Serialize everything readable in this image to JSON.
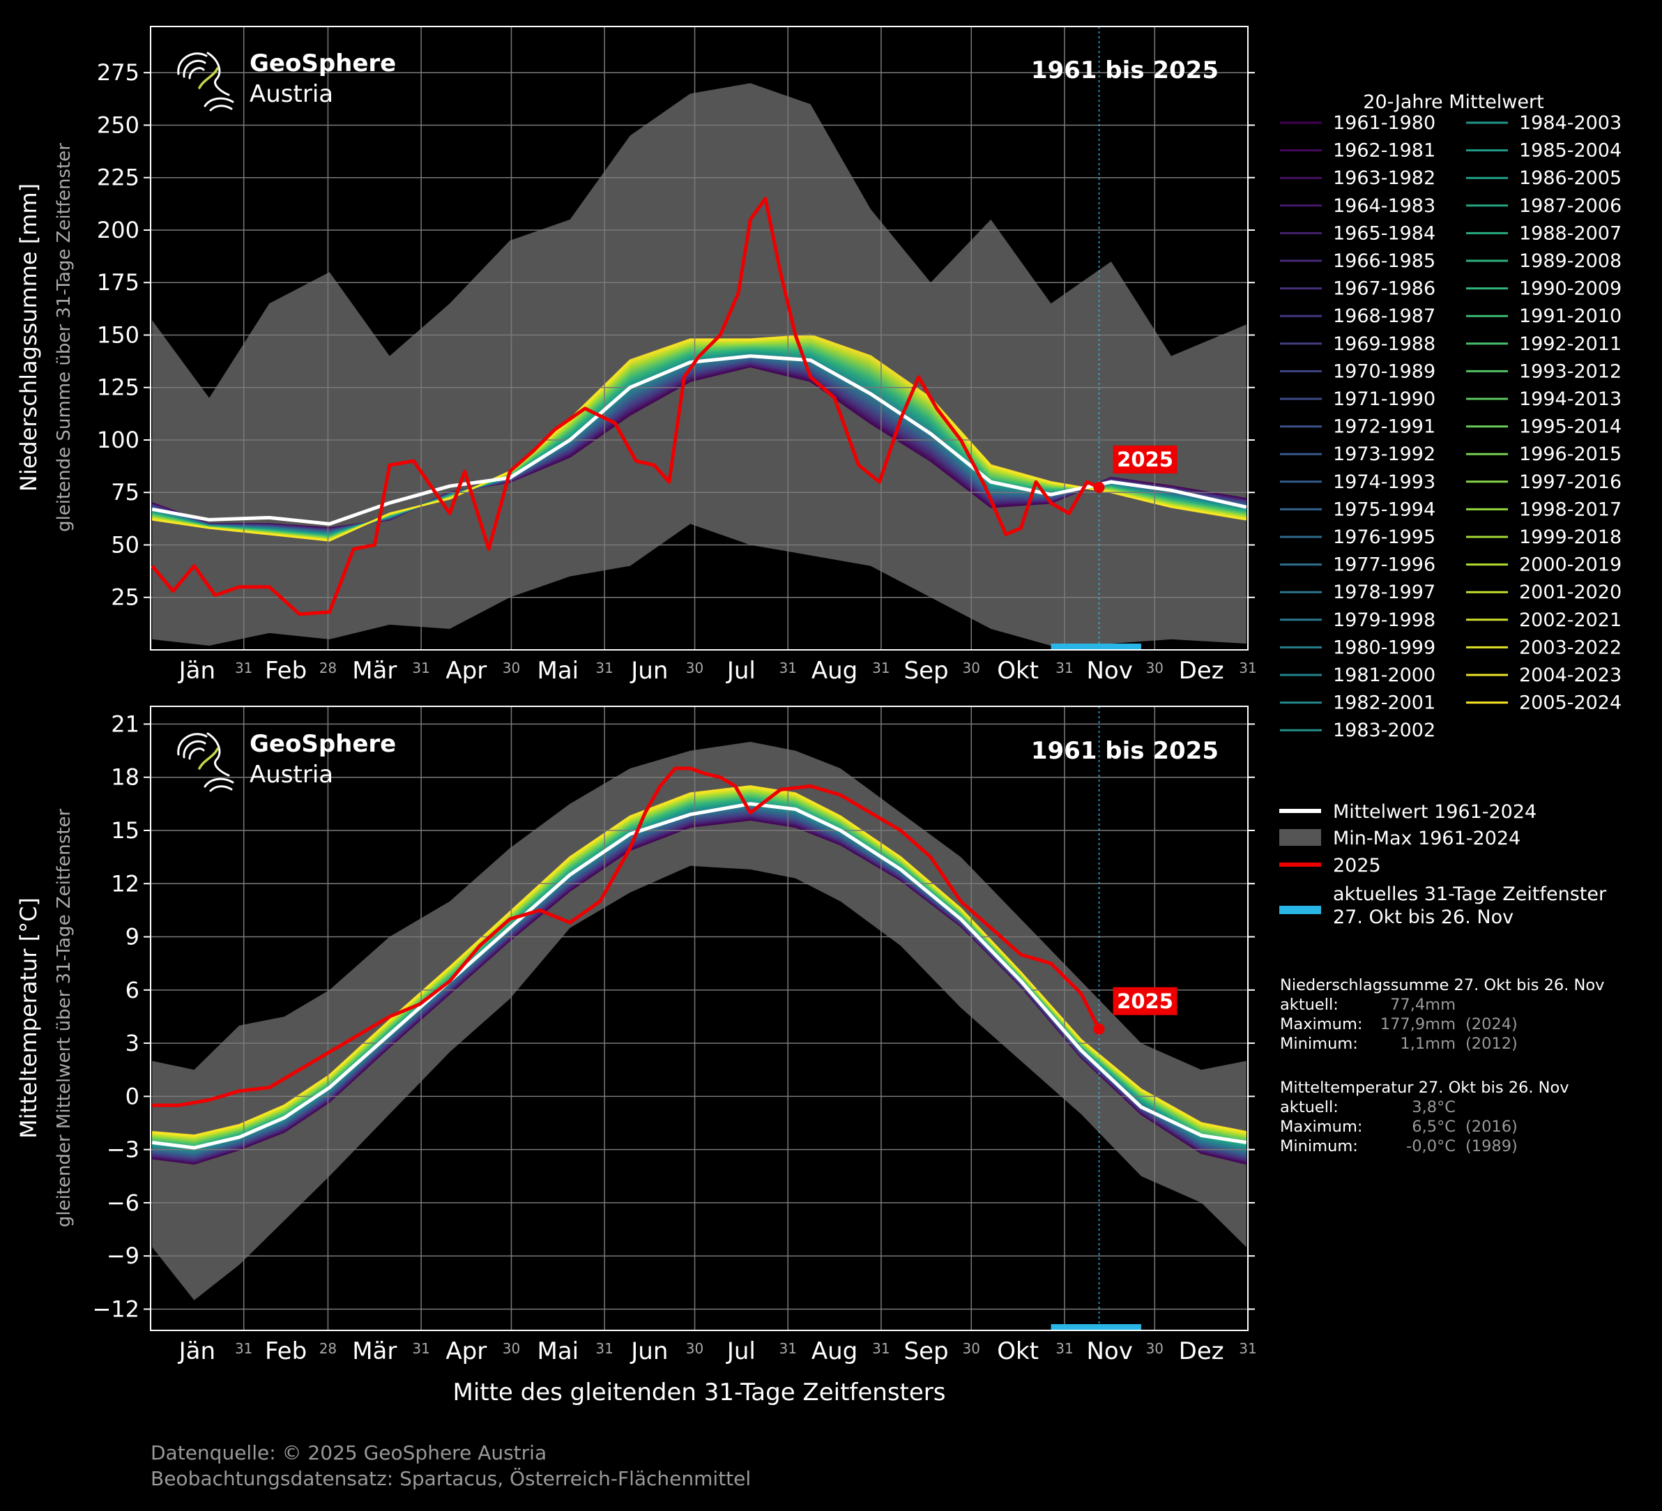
{
  "source": {
    "line1": "Datenquelle: © 2025 GeoSphere Austria",
    "line2": "Beobachtungsdatensatz: Spartacus, Österreich-Flächenmittel"
  },
  "logo": {
    "line1": "GeoSphere",
    "line2": "Austria"
  },
  "x_axis": {
    "label": "Mitte des gleitenden 31-Tage Zeitfensters",
    "months": [
      "Jän",
      "Feb",
      "Mär",
      "Apr",
      "Mai",
      "Jun",
      "Jul",
      "Aug",
      "Sep",
      "Okt",
      "Nov",
      "Dez"
    ],
    "month_ends": [
      "31",
      "28",
      "31",
      "30",
      "31",
      "30",
      "31",
      "31",
      "30",
      "31",
      "30",
      "31"
    ]
  },
  "legend": {
    "title": "20-Jahre Mittelwert",
    "periods": [
      "1961-1980",
      "1962-1981",
      "1963-1982",
      "1964-1983",
      "1965-1984",
      "1966-1985",
      "1967-1986",
      "1968-1987",
      "1969-1988",
      "1970-1989",
      "1971-1990",
      "1972-1991",
      "1973-1992",
      "1974-1993",
      "1975-1994",
      "1976-1995",
      "1977-1996",
      "1978-1997",
      "1979-1998",
      "1980-1999",
      "1981-2000",
      "1982-2001",
      "1983-2002",
      "1984-2003",
      "1985-2004",
      "1986-2005",
      "1987-2006",
      "1988-2007",
      "1989-2008",
      "1990-2009",
      "1991-2010",
      "1992-2011",
      "1993-2012",
      "1994-2013",
      "1995-2014",
      "1996-2015",
      "1997-2016",
      "1998-2017",
      "1999-2018",
      "2000-2019",
      "2001-2020",
      "2002-2021",
      "2003-2022",
      "2004-2023",
      "2005-2024"
    ],
    "mean": "Mittelwert 1961-2024",
    "minmax": "Min-Max 1961-2024",
    "current_year": "2025",
    "window_line1": "aktuelles 31-Tage Zeitfenster",
    "window_line2": "27. Okt bis 26. Nov"
  },
  "stats": {
    "precip": {
      "title": "Niederschlagssumme 27. Okt bis 26. Nov",
      "aktuell_label": "aktuell:",
      "aktuell": "77,4mm",
      "max_label": "Maximum:",
      "max": "177,9mm",
      "max_year": "(2024)",
      "min_label": "Minimum:",
      "min": "1,1mm",
      "min_year": "(2012)"
    },
    "temp": {
      "title": "Mitteltemperatur 27. Okt bis 26. Nov",
      "aktuell_label": "aktuell:",
      "aktuell": "3,8°C",
      "max_label": "Maximum:",
      "max": "6,5°C",
      "max_year": "(2016)",
      "min_label": "Minimum:",
      "min": "-0,0°C",
      "min_year": "(1989)"
    }
  },
  "colors": {
    "background": "#000000",
    "minmax_fill": "#555555",
    "mean": "#ffffff",
    "current": "#ee0000",
    "window": "#29b6e6",
    "grid": "#7a7a7a",
    "period_colormap": "viridis"
  },
  "chart_data": [
    {
      "type": "line",
      "title": "1961 bis 2025",
      "ylabel": "Niederschlagssumme [mm]",
      "ylabel2": "gleitende Summe über 31-Tage Zeitfenster",
      "ylim": [
        0,
        297
      ],
      "yticks": [
        25,
        50,
        75,
        100,
        125,
        150,
        175,
        200,
        225,
        250,
        275
      ],
      "x_unit": "day of year",
      "current_marker": {
        "day": 316,
        "value": 77.4,
        "label": "2025"
      },
      "window": {
        "start_day": 300,
        "end_day": 330
      },
      "mean_1961_2024": {
        "x": [
          1,
          20,
          40,
          60,
          80,
          100,
          120,
          140,
          160,
          180,
          200,
          220,
          240,
          260,
          280,
          300,
          320,
          340,
          365
        ],
        "y": [
          67,
          62,
          63,
          60,
          70,
          78,
          82,
          100,
          125,
          137,
          140,
          138,
          122,
          103,
          80,
          74,
          80,
          76,
          68
        ]
      },
      "min_1961_2024": {
        "x": [
          1,
          20,
          40,
          60,
          80,
          100,
          120,
          140,
          160,
          180,
          200,
          220,
          240,
          260,
          280,
          300,
          320,
          340,
          365
        ],
        "y": [
          5,
          2,
          8,
          5,
          12,
          10,
          25,
          35,
          40,
          60,
          50,
          45,
          40,
          25,
          10,
          2,
          3,
          5,
          3
        ]
      },
      "max_1961_2024": {
        "x": [
          1,
          20,
          40,
          60,
          80,
          100,
          120,
          140,
          160,
          180,
          200,
          220,
          240,
          260,
          280,
          300,
          320,
          340,
          365
        ],
        "y": [
          157,
          120,
          165,
          180,
          140,
          165,
          195,
          205,
          245,
          265,
          270,
          260,
          210,
          175,
          205,
          165,
          185,
          140,
          155
        ]
      },
      "period_spread": {
        "x": [
          1,
          20,
          40,
          60,
          80,
          100,
          120,
          140,
          160,
          180,
          200,
          220,
          240,
          260,
          280,
          300,
          320,
          340,
          365
        ],
        "first": [
          70,
          60,
          60,
          58,
          62,
          75,
          80,
          92,
          112,
          128,
          135,
          128,
          108,
          90,
          68,
          70,
          82,
          78,
          72
        ],
        "last": [
          62,
          58,
          55,
          52,
          65,
          72,
          85,
          110,
          138,
          148,
          148,
          150,
          140,
          120,
          88,
          80,
          75,
          68,
          62
        ]
      },
      "series_2025": {
        "x": [
          1,
          8,
          15,
          22,
          30,
          40,
          50,
          60,
          68,
          75,
          80,
          88,
          100,
          105,
          113,
          120,
          128,
          135,
          145,
          155,
          162,
          168,
          173,
          178,
          183,
          190,
          196,
          200,
          205,
          210,
          215,
          220,
          228,
          236,
          243,
          250,
          256,
          262,
          270,
          278,
          285,
          290,
          295,
          300,
          306,
          312,
          316
        ],
        "y": [
          40,
          28,
          40,
          26,
          30,
          30,
          17,
          18,
          48,
          50,
          88,
          90,
          65,
          85,
          48,
          85,
          95,
          105,
          115,
          108,
          90,
          88,
          80,
          130,
          140,
          150,
          170,
          205,
          215,
          180,
          150,
          130,
          120,
          88,
          80,
          110,
          130,
          115,
          100,
          78,
          55,
          58,
          80,
          70,
          65,
          80,
          77.4
        ]
      }
    },
    {
      "type": "line",
      "title": "1961 bis 2025",
      "ylabel": "Mitteltemperatur [°C]",
      "ylabel2": "gleitender Mittelwert über 31-Tage Zeitfenster",
      "ylim": [
        -13.2,
        22
      ],
      "yticks": [
        -12,
        -9,
        -6,
        -3,
        0,
        3,
        6,
        9,
        12,
        15,
        18,
        21
      ],
      "x_unit": "day of year",
      "current_marker": {
        "day": 316,
        "value": 3.8,
        "label": "2025"
      },
      "window": {
        "start_day": 300,
        "end_day": 330
      },
      "mean_1961_2024": {
        "x": [
          1,
          15,
          30,
          45,
          60,
          80,
          100,
          120,
          140,
          160,
          180,
          200,
          215,
          230,
          250,
          270,
          290,
          310,
          330,
          350,
          365
        ],
        "y": [
          -2.6,
          -2.9,
          -2.3,
          -1.2,
          0.5,
          3.5,
          6.5,
          9.5,
          12.5,
          14.8,
          15.9,
          16.5,
          16.2,
          15.0,
          12.8,
          10.0,
          6.5,
          2.6,
          -0.6,
          -2.2,
          -2.6
        ]
      },
      "min_1961_2024": {
        "x": [
          1,
          15,
          30,
          45,
          60,
          80,
          100,
          120,
          140,
          160,
          180,
          200,
          215,
          230,
          250,
          270,
          290,
          310,
          330,
          350,
          365
        ],
        "y": [
          -8.5,
          -11.5,
          -9.5,
          -7,
          -4.5,
          -1,
          2.5,
          5.5,
          9.5,
          11.5,
          13,
          12.8,
          12.3,
          11,
          8.5,
          5,
          2,
          -1,
          -4.5,
          -6,
          -8.5
        ]
      },
      "max_1961_2024": {
        "x": [
          1,
          15,
          30,
          45,
          60,
          80,
          100,
          120,
          140,
          160,
          180,
          200,
          215,
          230,
          250,
          270,
          290,
          310,
          330,
          350,
          365
        ],
        "y": [
          2,
          1.5,
          4,
          4.5,
          6,
          9,
          11,
          14,
          16.5,
          18.5,
          19.5,
          20,
          19.5,
          18.5,
          16,
          13.5,
          10,
          6.5,
          3,
          1.5,
          2
        ]
      },
      "period_spread": {
        "x": [
          1,
          15,
          30,
          45,
          60,
          80,
          100,
          120,
          140,
          160,
          180,
          200,
          215,
          230,
          250,
          270,
          290,
          310,
          330,
          350,
          365
        ],
        "first": [
          -3.5,
          -3.8,
          -3.0,
          -2.0,
          -0.3,
          2.8,
          5.8,
          8.8,
          11.6,
          13.9,
          15.2,
          15.6,
          15.2,
          14.2,
          12.2,
          9.6,
          6.2,
          2.2,
          -1.0,
          -3.2,
          -3.8
        ],
        "last": [
          -2.0,
          -2.2,
          -1.6,
          -0.5,
          1.2,
          4.3,
          7.3,
          10.4,
          13.5,
          15.8,
          17.1,
          17.5,
          17.1,
          15.8,
          13.5,
          10.6,
          7.0,
          3.2,
          0.4,
          -1.5,
          -2.0
        ]
      },
      "series_2025": {
        "x": [
          1,
          10,
          20,
          30,
          40,
          50,
          60,
          70,
          80,
          90,
          100,
          110,
          120,
          130,
          140,
          150,
          155,
          160,
          165,
          170,
          175,
          180,
          185,
          190,
          195,
          200,
          210,
          220,
          230,
          240,
          250,
          260,
          270,
          280,
          290,
          300,
          310,
          316
        ],
        "y": [
          -0.5,
          -0.5,
          -0.2,
          0.3,
          0.5,
          1.5,
          2.5,
          3.5,
          4.5,
          5.2,
          6.5,
          8.5,
          10,
          10.5,
          9.8,
          11,
          12.5,
          14,
          16,
          17.5,
          18.5,
          18.5,
          18.2,
          18.0,
          17.5,
          16.0,
          17.3,
          17.5,
          17,
          16,
          15,
          13.5,
          11,
          9.5,
          8,
          7.5,
          5.8,
          3.8
        ]
      }
    }
  ]
}
